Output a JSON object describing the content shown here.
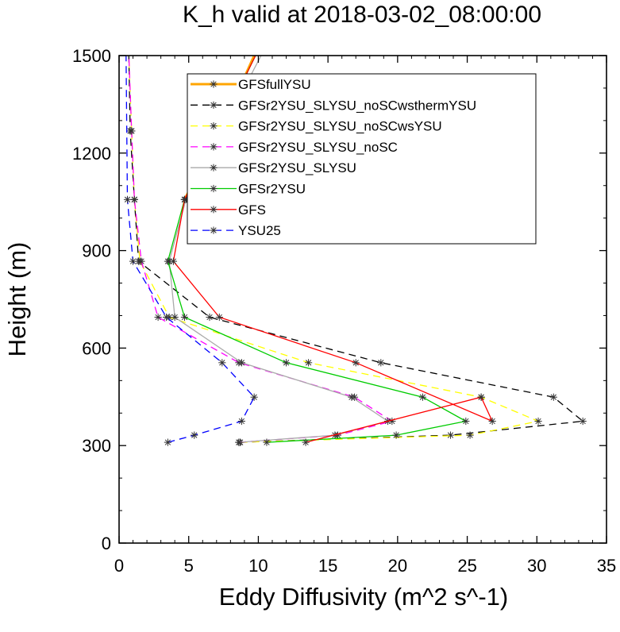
{
  "chart_data": {
    "type": "line",
    "title": "K_h valid at 2018-03-02_08:00:00",
    "xlabel": "Eddy Diffusivity (m^2 s^-1)",
    "ylabel": "Height (m)",
    "xlim": [
      0,
      35
    ],
    "ylim": [
      0,
      1500
    ],
    "xticks": [
      0,
      5,
      10,
      15,
      20,
      25,
      30,
      35
    ],
    "yticks": [
      0,
      300,
      600,
      900,
      1200,
      1500
    ],
    "xtick_labels": [
      "0",
      "5",
      "10",
      "15",
      "20",
      "25",
      "30",
      "35"
    ],
    "ytick_labels": [
      "0",
      "300",
      "600",
      "900",
      "1200",
      "1500"
    ],
    "grid": false,
    "legend_position": "top-right",
    "series": [
      {
        "name": "GFSfullYSU",
        "color": "#ffa500",
        "dash": "solid",
        "heavy": true,
        "points": [
          [
            4.7,
            1057
          ],
          [
            5.8,
            1150
          ],
          [
            7.6,
            1300
          ],
          [
            9.7,
            1500
          ]
        ]
      },
      {
        "name": "GFSr2YSU_SLYSU_noSCwsthermYSU",
        "color": "#000000",
        "dash": "dashed",
        "points": [
          [
            8.7,
            310
          ],
          [
            23.8,
            332
          ],
          [
            33.3,
            375
          ],
          [
            31.2,
            449
          ],
          [
            18.8,
            555
          ],
          [
            6.5,
            695
          ],
          [
            1.4,
            867
          ],
          [
            1.1,
            1057
          ],
          [
            0.8,
            1268
          ],
          [
            0.7,
            1500
          ]
        ]
      },
      {
        "name": "GFSr2YSU_SLYSU_noSCwsYSU",
        "color": "#ffff00",
        "dash": "dashed",
        "points": [
          [
            8.7,
            310
          ],
          [
            25.2,
            332
          ],
          [
            30.1,
            375
          ],
          [
            26.0,
            449
          ],
          [
            13.6,
            555
          ],
          [
            3.6,
            695
          ],
          [
            1.5,
            867
          ],
          [
            1.1,
            1057
          ],
          [
            0.9,
            1268
          ],
          [
            0.7,
            1500
          ]
        ]
      },
      {
        "name": "GFSr2YSU_SLYSU_noSC",
        "color": "#ff00ff",
        "dash": "dashed",
        "points": [
          [
            8.6,
            310
          ],
          [
            15.7,
            332
          ],
          [
            19.6,
            375
          ],
          [
            16.9,
            449
          ],
          [
            8.6,
            555
          ],
          [
            2.8,
            695
          ],
          [
            1.6,
            867
          ],
          [
            1.1,
            1057
          ],
          [
            0.9,
            1268
          ],
          [
            0.7,
            1500
          ]
        ]
      },
      {
        "name": "GFSr2YSU_SLYSU",
        "color": "#aaaaaa",
        "dash": "solid",
        "points": [
          [
            8.6,
            310
          ],
          [
            15.5,
            332
          ],
          [
            19.3,
            375
          ],
          [
            16.7,
            449
          ],
          [
            8.8,
            555
          ],
          [
            4.0,
            695
          ],
          [
            3.6,
            867
          ],
          [
            4.8,
            1057
          ],
          [
            10.2,
            1500
          ]
        ]
      },
      {
        "name": "GFSr2YSU",
        "color": "#00cc00",
        "dash": "solid",
        "points": [
          [
            10.6,
            310
          ],
          [
            19.9,
            332
          ],
          [
            24.9,
            375
          ],
          [
            21.8,
            449
          ],
          [
            12.0,
            555
          ],
          [
            4.7,
            695
          ],
          [
            3.5,
            867
          ],
          [
            4.7,
            1057
          ],
          [
            9.8,
            1500
          ]
        ]
      },
      {
        "name": "GFS",
        "color": "#ff0000",
        "dash": "solid",
        "points": [
          [
            13.4,
            310
          ],
          [
            26.0,
            449
          ],
          [
            26.8,
            375
          ],
          [
            17.0,
            555
          ],
          [
            7.2,
            695
          ],
          [
            3.9,
            867
          ],
          [
            4.7,
            1057
          ],
          [
            9.8,
            1500
          ]
        ]
      },
      {
        "name": "YSU25",
        "color": "#0000ff",
        "dash": "dashed",
        "points": [
          [
            3.5,
            310
          ],
          [
            5.4,
            332
          ],
          [
            8.8,
            375
          ],
          [
            9.7,
            449
          ],
          [
            7.4,
            555
          ],
          [
            3.4,
            695
          ],
          [
            1.0,
            867
          ],
          [
            0.6,
            1057
          ],
          [
            0.5,
            1500
          ]
        ]
      }
    ]
  }
}
